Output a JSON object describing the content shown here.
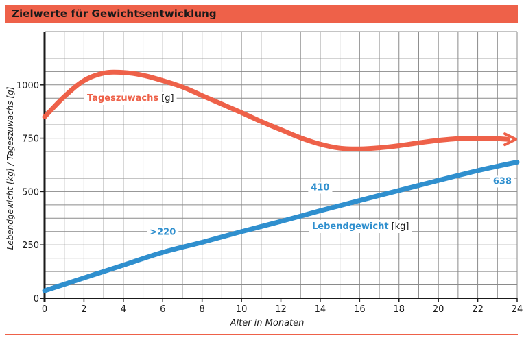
{
  "title": "Zielwerte für Gewichtsentwicklung",
  "colors": {
    "accent": "#ee6149",
    "tageszuwachs": "#ee6149",
    "lebendgewicht": "#2f8fce",
    "grid": "#8a8a8a",
    "axis": "#1a1a1a"
  },
  "chart_data": {
    "type": "line",
    "title": "Zielwerte für Gewichtsentwicklung",
    "xlabel": "Alter in Monaten",
    "ylabel": "Lebendgewicht [kg] / Tageszuwachs [g]",
    "xlim": [
      0,
      24
    ],
    "ylim": [
      0,
      1250
    ],
    "x_ticks": [
      "0",
      "2",
      "4",
      "6",
      "8",
      "10",
      "12",
      "14",
      "16",
      "18",
      "20",
      "22",
      "24"
    ],
    "y_ticks": [
      "0",
      "250",
      "500",
      "750",
      "1000"
    ],
    "grid": true,
    "series": [
      {
        "name": "Tageszuwachs",
        "unit": "[g]",
        "color": "#ee6149",
        "x": [
          0,
          1,
          2,
          3,
          4,
          5,
          6,
          7,
          8,
          9,
          10,
          11,
          12,
          13,
          14,
          15,
          16,
          17,
          18,
          19,
          20,
          21,
          22,
          23,
          24
        ],
        "values": [
          850,
          945,
          1020,
          1055,
          1058,
          1045,
          1020,
          990,
          950,
          910,
          870,
          828,
          790,
          752,
          722,
          703,
          700,
          705,
          715,
          728,
          740,
          748,
          750,
          748,
          745
        ]
      },
      {
        "name": "Lebendgewicht",
        "unit": "[kg]",
        "color": "#2f8fce",
        "x": [
          0,
          2,
          4,
          6,
          8,
          10,
          12,
          14,
          16,
          18,
          20,
          22,
          24
        ],
        "values": [
          35,
          95,
          155,
          215,
          262,
          312,
          360,
          410,
          458,
          505,
          552,
          598,
          638
        ]
      }
    ],
    "annotations": [
      {
        "text": ">220",
        "x": 6,
        "y": 220
      },
      {
        "text": "410",
        "x": 14,
        "y": 410
      },
      {
        "text": "638",
        "x": 24,
        "y": 638
      }
    ]
  }
}
